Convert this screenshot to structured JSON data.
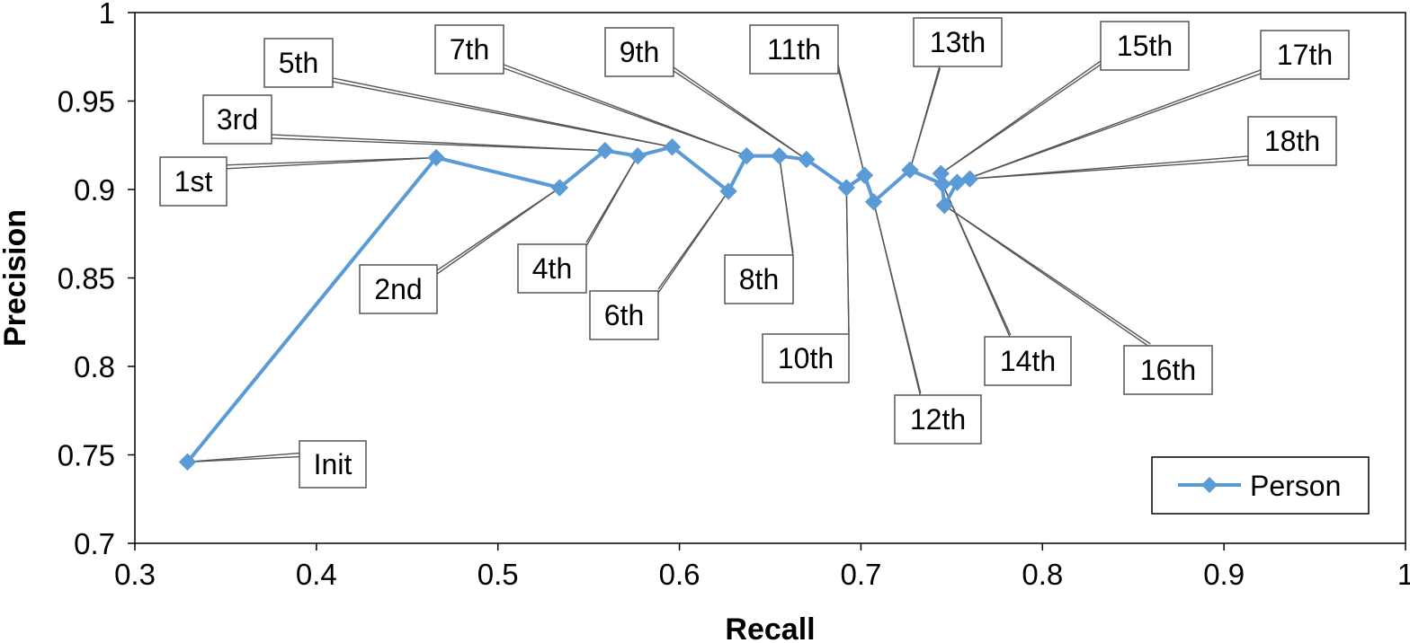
{
  "chart_data": {
    "type": "line",
    "xlabel": "Recall",
    "ylabel": "Precision",
    "xlim": [
      0.3,
      1
    ],
    "ylim": [
      0.7,
      1
    ],
    "xticks": [
      "0.3",
      "0.4",
      "0.5",
      "0.6",
      "0.7",
      "0.8",
      "0.9",
      "1"
    ],
    "yticks": [
      "0.7",
      "0.75",
      "0.8",
      "0.85",
      "0.9",
      "0.95",
      "1"
    ],
    "grid": false,
    "legend_position": "bottom-right",
    "series": [
      {
        "name": "Person",
        "color": "#5b9bd5",
        "marker": "diamond",
        "points": [
          {
            "label": "Init",
            "x": 0.329,
            "y": 0.746
          },
          {
            "label": "1st",
            "x": 0.466,
            "y": 0.918
          },
          {
            "label": "2nd",
            "x": 0.534,
            "y": 0.901
          },
          {
            "label": "3rd",
            "x": 0.559,
            "y": 0.922
          },
          {
            "label": "4th",
            "x": 0.577,
            "y": 0.919
          },
          {
            "label": "5th",
            "x": 0.596,
            "y": 0.924
          },
          {
            "label": "6th",
            "x": 0.627,
            "y": 0.899
          },
          {
            "label": "7th",
            "x": 0.637,
            "y": 0.919
          },
          {
            "label": "8th",
            "x": 0.655,
            "y": 0.919
          },
          {
            "label": "9th",
            "x": 0.67,
            "y": 0.917
          },
          {
            "label": "10th",
            "x": 0.692,
            "y": 0.901
          },
          {
            "label": "11th",
            "x": 0.702,
            "y": 0.908
          },
          {
            "label": "12th",
            "x": 0.707,
            "y": 0.893
          },
          {
            "label": "13th",
            "x": 0.727,
            "y": 0.911
          },
          {
            "label": "14th",
            "x": 0.745,
            "y": 0.903
          },
          {
            "label": "15th",
            "x": 0.744,
            "y": 0.909
          },
          {
            "label": "16th",
            "x": 0.746,
            "y": 0.891
          },
          {
            "label": "17th",
            "x": 0.753,
            "y": 0.904
          },
          {
            "label": "18th",
            "x": 0.76,
            "y": 0.906
          }
        ]
      }
    ]
  }
}
